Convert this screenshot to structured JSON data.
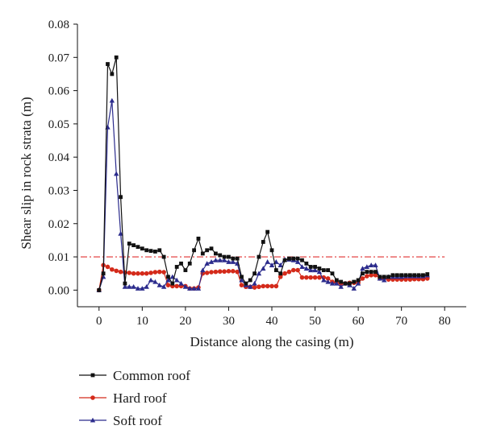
{
  "chart_data": {
    "type": "line",
    "title": "",
    "xlabel": "Distance along the casing (m)",
    "ylabel": "Shear slip in rock strata (m)",
    "xlim": [
      -5,
      85
    ],
    "ylim": [
      -0.005,
      0.08
    ],
    "xticks": [
      0,
      10,
      20,
      30,
      40,
      50,
      60,
      70,
      80
    ],
    "yticks": [
      0.0,
      0.01,
      0.02,
      0.03,
      0.04,
      0.05,
      0.06,
      0.07,
      0.08
    ],
    "xtick_labels": [
      "0",
      "10",
      "20",
      "30",
      "40",
      "50",
      "60",
      "70",
      "80"
    ],
    "ytick_labels": [
      "0.00",
      "0.01",
      "0.02",
      "0.03",
      "0.04",
      "0.05",
      "0.06",
      "0.07",
      "0.08"
    ],
    "reference_line": {
      "y": 0.01,
      "style": "dash-dot",
      "color": "#e03030"
    },
    "legend_position": "bottom-left, below plot",
    "grid": false,
    "series": [
      {
        "name": "Common roof",
        "color": "#111111",
        "marker": "square",
        "x": [
          0,
          1,
          2,
          3,
          4,
          5,
          6,
          7,
          8,
          9,
          10,
          11,
          12,
          13,
          14,
          15,
          16,
          17,
          18,
          19,
          20,
          21,
          22,
          23,
          24,
          25,
          26,
          27,
          28,
          29,
          30,
          31,
          32,
          33,
          34,
          35,
          36,
          37,
          38,
          39,
          40,
          41,
          42,
          43,
          44,
          45,
          46,
          47,
          48,
          49,
          50,
          51,
          52,
          53,
          54,
          55,
          56,
          57,
          58,
          59,
          60,
          61,
          62,
          63,
          64,
          65,
          66,
          67,
          68,
          69,
          70,
          71,
          72,
          73,
          74,
          75,
          76
        ],
        "y": [
          0,
          0.005,
          0.068,
          0.065,
          0.07,
          0.028,
          0.002,
          0.014,
          0.0135,
          0.013,
          0.0125,
          0.012,
          0.0118,
          0.0116,
          0.012,
          0.01,
          0.004,
          0.002,
          0.007,
          0.008,
          0.006,
          0.008,
          0.012,
          0.0155,
          0.011,
          0.012,
          0.0125,
          0.011,
          0.0105,
          0.01,
          0.01,
          0.0095,
          0.0095,
          0.004,
          0.002,
          0.003,
          0.005,
          0.01,
          0.0145,
          0.0175,
          0.012,
          0.006,
          0.005,
          0.009,
          0.0095,
          0.0095,
          0.0095,
          0.009,
          0.008,
          0.007,
          0.007,
          0.0065,
          0.006,
          0.006,
          0.005,
          0.003,
          0.0025,
          0.002,
          0.002,
          0.0025,
          0.003,
          0.005,
          0.0055,
          0.0055,
          0.0055,
          0.004,
          0.004,
          0.004,
          0.0045,
          0.0045,
          0.0045,
          0.0045,
          0.0045,
          0.0045,
          0.0045,
          0.0045,
          0.0048
        ]
      },
      {
        "name": "Hard roof",
        "color": "#d42a1a",
        "marker": "circle",
        "x": [
          0,
          1,
          2,
          3,
          4,
          5,
          6,
          7,
          8,
          9,
          10,
          11,
          12,
          13,
          14,
          15,
          16,
          17,
          18,
          19,
          20,
          21,
          22,
          23,
          24,
          25,
          26,
          27,
          28,
          29,
          30,
          31,
          32,
          33,
          34,
          35,
          36,
          37,
          38,
          39,
          40,
          41,
          42,
          43,
          44,
          45,
          46,
          47,
          48,
          49,
          50,
          51,
          52,
          53,
          54,
          55,
          56,
          57,
          58,
          59,
          60,
          61,
          62,
          63,
          64,
          65,
          66,
          67,
          68,
          69,
          70,
          71,
          72,
          73,
          74,
          75,
          76
        ],
        "y": [
          0,
          0.0075,
          0.007,
          0.0062,
          0.0058,
          0.0055,
          0.0053,
          0.0052,
          0.005,
          0.005,
          0.005,
          0.005,
          0.0052,
          0.0054,
          0.0055,
          0.0054,
          0.0015,
          0.0012,
          0.0012,
          0.0012,
          0.0012,
          0.0005,
          0.0005,
          0.0008,
          0.005,
          0.0052,
          0.0054,
          0.0055,
          0.0056,
          0.0056,
          0.0057,
          0.0057,
          0.0055,
          0.0015,
          0.001,
          0.001,
          0.0008,
          0.001,
          0.0012,
          0.0012,
          0.0012,
          0.0012,
          0.004,
          0.005,
          0.0055,
          0.006,
          0.006,
          0.0038,
          0.0038,
          0.0038,
          0.0038,
          0.0038,
          0.0038,
          0.0035,
          0.0025,
          0.0022,
          0.002,
          0.002,
          0.0022,
          0.0022,
          0.0022,
          0.0035,
          0.0042,
          0.0045,
          0.0045,
          0.0035,
          0.0035,
          0.0032,
          0.0032,
          0.0032,
          0.0032,
          0.0032,
          0.0032,
          0.0033,
          0.0033,
          0.0033,
          0.0035
        ]
      },
      {
        "name": "Soft roof",
        "color": "#2b2b8c",
        "marker": "triangle",
        "x": [
          0,
          1,
          2,
          3,
          4,
          5,
          6,
          7,
          8,
          9,
          10,
          11,
          12,
          13,
          14,
          15,
          16,
          17,
          18,
          19,
          20,
          21,
          22,
          23,
          24,
          25,
          26,
          27,
          28,
          29,
          30,
          31,
          32,
          33,
          34,
          35,
          36,
          37,
          38,
          39,
          40,
          41,
          42,
          43,
          44,
          45,
          46,
          47,
          48,
          49,
          50,
          51,
          52,
          53,
          54,
          55,
          56,
          57,
          58,
          59,
          60,
          61,
          62,
          63,
          64,
          65,
          66,
          67,
          68,
          69,
          70,
          71,
          72,
          73,
          74,
          75,
          76
        ],
        "y": [
          0,
          0.004,
          0.049,
          0.057,
          0.035,
          0.017,
          0.001,
          0.001,
          0.001,
          0.0005,
          0.0005,
          0.001,
          0.003,
          0.0025,
          0.0015,
          0.001,
          0.003,
          0.004,
          0.003,
          0.002,
          0.001,
          0.0005,
          0.0005,
          0.0005,
          0.006,
          0.008,
          0.0085,
          0.009,
          0.009,
          0.009,
          0.0085,
          0.0085,
          0.008,
          0.003,
          0.0015,
          0.001,
          0.002,
          0.005,
          0.0065,
          0.0085,
          0.0075,
          0.0085,
          0.0075,
          0.0092,
          0.0092,
          0.009,
          0.0085,
          0.007,
          0.0065,
          0.006,
          0.006,
          0.0055,
          0.003,
          0.0025,
          0.002,
          0.002,
          0.001,
          0.002,
          0.0015,
          0.0005,
          0.002,
          0.0065,
          0.007,
          0.0075,
          0.0075,
          0.0035,
          0.003,
          0.004,
          0.004,
          0.004,
          0.004,
          0.0042,
          0.0042,
          0.0042,
          0.0042,
          0.0042,
          0.0045
        ]
      }
    ]
  }
}
